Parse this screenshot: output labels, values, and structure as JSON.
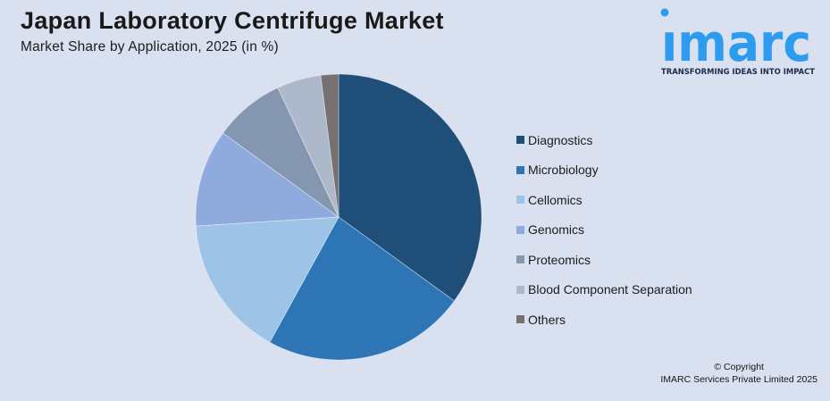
{
  "header": {
    "title": "Japan Laboratory Centrifuge Market",
    "subtitle": "Market Share by Application, 2025 (in %)"
  },
  "logo": {
    "brand": "imarc",
    "brand_display": "ımarc",
    "tagline": "TRANSFORMING IDEAS INTO IMPACT",
    "brand_color": "#2D9CEF",
    "tagline_color": "#1B2B4C"
  },
  "footer": {
    "copyright_line1": "© Copyright",
    "copyright_line2": "IMARC Services Private Limited 2025"
  },
  "chart_data": {
    "type": "pie",
    "title": "Japan Laboratory Centrifuge Market",
    "subtitle": "Market Share by Application, 2025 (in %)",
    "unit": "%",
    "legend_position": "right",
    "start_angle_deg": 0,
    "direction": "clockwise",
    "series": [
      {
        "name": "Diagnostics",
        "value": 35,
        "color": "#1F4E79"
      },
      {
        "name": "Microbiology",
        "value": 23,
        "color": "#2E75B6"
      },
      {
        "name": "Cellomics",
        "value": 16,
        "color": "#9DC3E6"
      },
      {
        "name": "Genomics",
        "value": 11,
        "color": "#8FAADC"
      },
      {
        "name": "Proteomics",
        "value": 8,
        "color": "#8496B0"
      },
      {
        "name": "Blood Component Separation",
        "value": 5,
        "color": "#ADB9CA"
      },
      {
        "name": "Others",
        "value": 2,
        "color": "#767171"
      }
    ],
    "background": "#D9E0EF",
    "slice_border_color": "rgba(255,255,255,0.4)"
  }
}
